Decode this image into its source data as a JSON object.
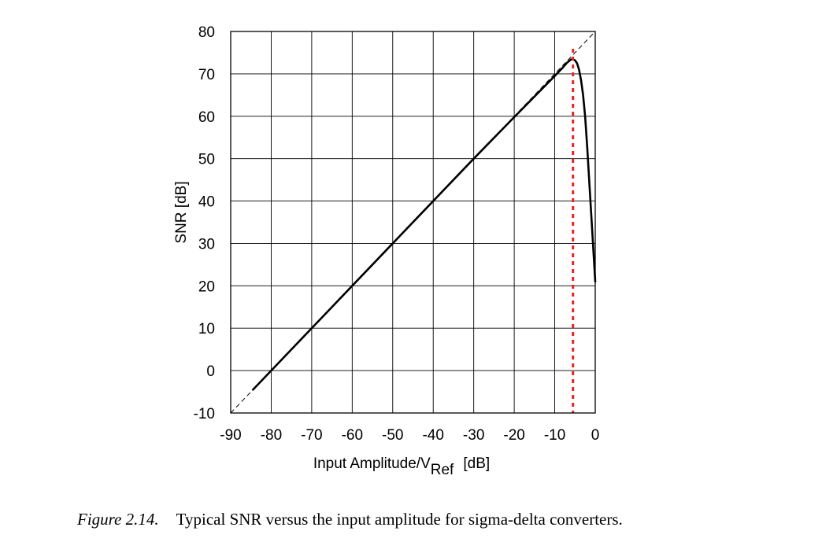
{
  "chart_data": {
    "type": "line",
    "xlabel_main": "Input Amplitude/V",
    "xlabel_sub": "Ref",
    "xlabel_unit": "[dB]",
    "ylabel": "SNR [dB]",
    "xlim": [
      -90,
      0
    ],
    "ylim": [
      -10,
      80
    ],
    "x_ticks": [
      -90,
      -80,
      -70,
      -60,
      -50,
      -40,
      -30,
      -20,
      -10,
      0
    ],
    "y_ticks": [
      -10,
      0,
      10,
      20,
      30,
      40,
      50,
      60,
      70,
      80
    ],
    "grid": true,
    "series": [
      {
        "name": "SNR",
        "style": "solid-black",
        "x": [
          -84.5,
          -80,
          -70,
          -60,
          -50,
          -40,
          -30,
          -20,
          -10,
          -8,
          -7,
          -6.5,
          -6,
          -5.5,
          -5,
          -4.5,
          -4,
          -3.5,
          -3,
          -2.5,
          -2,
          -1.5,
          -1,
          -0.5,
          0
        ],
        "y": [
          -4.5,
          0,
          10,
          20,
          30,
          40,
          50,
          59.8,
          69.5,
          71.5,
          72.6,
          73.0,
          73.4,
          73.4,
          73.2,
          72.5,
          71,
          68.5,
          65,
          60,
          53,
          45,
          37,
          29,
          21
        ]
      },
      {
        "name": "Ideal",
        "style": "dashed-black",
        "x": [
          -90,
          0
        ],
        "y": [
          -10,
          80
        ]
      }
    ],
    "marker_line": {
      "x": -5.5,
      "color": "#e8251b",
      "style": "dotted-vertical"
    }
  },
  "caption": {
    "number": "Figure 2.14.",
    "text": "Typical SNR versus the input amplitude for sigma-delta converters."
  }
}
